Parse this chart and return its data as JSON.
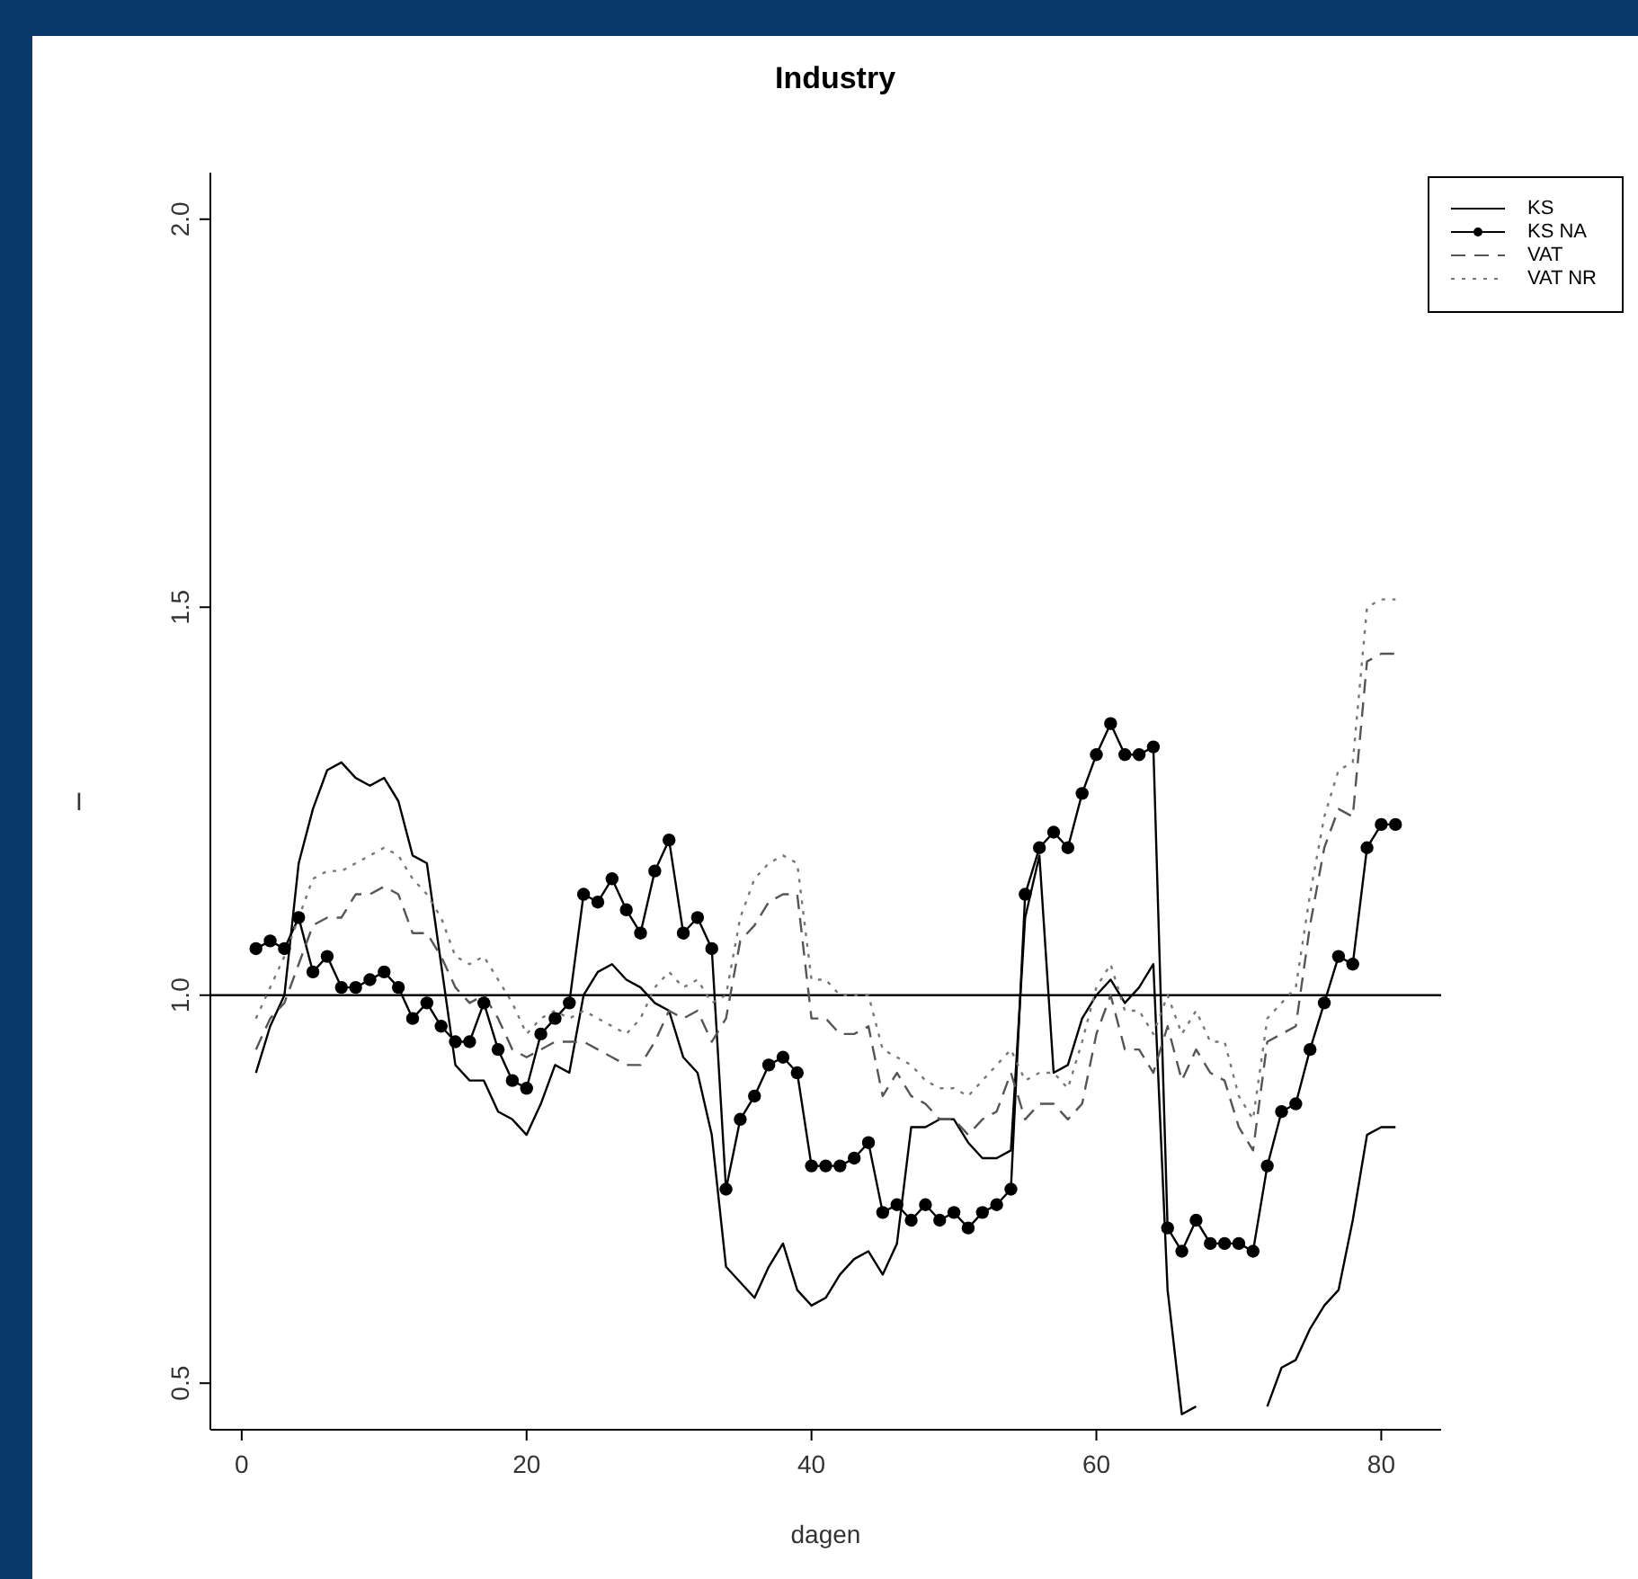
{
  "chart_data": {
    "type": "line",
    "title": "Industry",
    "xlabel": "dagen",
    "ylabel": "I",
    "x": [
      1,
      2,
      3,
      4,
      5,
      6,
      7,
      8,
      9,
      10,
      11,
      12,
      13,
      14,
      15,
      16,
      17,
      18,
      19,
      20,
      21,
      22,
      23,
      24,
      25,
      26,
      27,
      28,
      29,
      30,
      31,
      32,
      33,
      34,
      35,
      36,
      37,
      38,
      39,
      40,
      41,
      42,
      43,
      44,
      45,
      46,
      47,
      48,
      49,
      50,
      51,
      52,
      53,
      54,
      55,
      56,
      57,
      58,
      59,
      60,
      61,
      62,
      63,
      64,
      65,
      66,
      67,
      68,
      69,
      70,
      71,
      72,
      73,
      74,
      75,
      76,
      77,
      78,
      79,
      80,
      81
    ],
    "series": [
      {
        "name": "KS",
        "color": "#000000",
        "line_style": "solid",
        "marker": "none",
        "values": [
          0.9,
          0.96,
          1.0,
          1.17,
          1.24,
          1.29,
          1.3,
          1.28,
          1.27,
          1.28,
          1.25,
          1.18,
          1.17,
          1.04,
          0.91,
          0.89,
          0.89,
          0.85,
          0.84,
          0.82,
          0.86,
          0.91,
          0.9,
          1.0,
          1.03,
          1.04,
          1.02,
          1.01,
          0.99,
          0.98,
          0.92,
          0.9,
          0.82,
          0.65,
          0.63,
          0.61,
          0.65,
          0.68,
          0.62,
          0.6,
          0.61,
          0.64,
          0.66,
          0.67,
          0.64,
          0.68,
          0.83,
          0.83,
          0.84,
          0.84,
          0.81,
          0.79,
          0.79,
          0.8,
          1.1,
          1.18,
          0.9,
          0.91,
          0.97,
          1.0,
          1.02,
          0.99,
          1.01,
          1.04,
          0.62,
          0.46,
          0.47,
          null,
          null,
          null,
          null,
          0.47,
          0.52,
          0.53,
          0.57,
          0.6,
          0.62,
          0.71,
          0.82,
          0.83,
          0.83
        ]
      },
      {
        "name": "KS NA",
        "color": "#000000",
        "line_style": "solid",
        "marker": "circle",
        "values": [
          1.06,
          1.07,
          1.06,
          1.1,
          1.03,
          1.05,
          1.01,
          1.01,
          1.02,
          1.03,
          1.01,
          0.97,
          0.99,
          0.96,
          0.94,
          0.94,
          0.99,
          0.93,
          0.89,
          0.88,
          0.95,
          0.97,
          0.99,
          1.13,
          1.12,
          1.15,
          1.11,
          1.08,
          1.16,
          1.2,
          1.08,
          1.1,
          1.06,
          0.75,
          0.84,
          0.87,
          0.91,
          0.92,
          0.9,
          0.78,
          0.78,
          0.78,
          0.79,
          0.81,
          0.72,
          0.73,
          0.71,
          0.73,
          0.71,
          0.72,
          0.7,
          0.72,
          0.73,
          0.75,
          1.13,
          1.19,
          1.21,
          1.19,
          1.26,
          1.31,
          1.35,
          1.31,
          1.31,
          1.32,
          0.7,
          0.67,
          0.71,
          0.68,
          0.68,
          0.68,
          0.67,
          0.78,
          0.85,
          0.86,
          0.93,
          0.99,
          1.05,
          1.04,
          1.19,
          1.22,
          1.22
        ]
      },
      {
        "name": "VAT",
        "color": "#555555",
        "line_style": "dashed",
        "marker": "none",
        "values": [
          0.93,
          0.97,
          0.99,
          1.04,
          1.09,
          1.1,
          1.1,
          1.13,
          1.13,
          1.14,
          1.13,
          1.08,
          1.08,
          1.05,
          1.01,
          0.99,
          1.0,
          0.97,
          0.93,
          0.92,
          0.93,
          0.94,
          0.94,
          0.94,
          0.93,
          0.92,
          0.91,
          0.91,
          0.94,
          0.98,
          0.97,
          0.98,
          0.94,
          0.97,
          1.07,
          1.09,
          1.12,
          1.13,
          1.13,
          0.97,
          0.97,
          0.95,
          0.95,
          0.96,
          0.87,
          0.9,
          0.87,
          0.86,
          0.84,
          0.84,
          0.82,
          0.84,
          0.85,
          0.9,
          0.84,
          0.86,
          0.86,
          0.84,
          0.86,
          0.95,
          1.0,
          0.93,
          0.93,
          0.9,
          0.96,
          0.89,
          0.93,
          0.9,
          0.89,
          0.83,
          0.8,
          0.94,
          0.95,
          0.96,
          1.09,
          1.19,
          1.24,
          1.23,
          1.43,
          1.44,
          1.44
        ]
      },
      {
        "name": "VAT NR",
        "color": "#777777",
        "line_style": "dotted",
        "marker": "none",
        "values": [
          0.97,
          1.01,
          1.05,
          1.1,
          1.15,
          1.16,
          1.16,
          1.17,
          1.18,
          1.19,
          1.18,
          1.15,
          1.13,
          1.1,
          1.05,
          1.04,
          1.05,
          1.02,
          0.99,
          0.95,
          0.97,
          0.98,
          0.97,
          0.98,
          0.97,
          0.96,
          0.95,
          0.97,
          1.01,
          1.03,
          1.01,
          1.02,
          0.99,
          1.0,
          1.1,
          1.15,
          1.17,
          1.18,
          1.17,
          1.02,
          1.02,
          1.0,
          1.0,
          1.0,
          0.93,
          0.92,
          0.91,
          0.89,
          0.88,
          0.88,
          0.87,
          0.89,
          0.91,
          0.93,
          0.89,
          0.9,
          0.9,
          0.88,
          0.94,
          1.01,
          1.04,
          0.98,
          0.98,
          0.95,
          1.0,
          0.95,
          0.98,
          0.94,
          0.94,
          0.87,
          0.84,
          0.97,
          0.99,
          1.01,
          1.13,
          1.23,
          1.29,
          1.3,
          1.5,
          1.51,
          1.51
        ]
      }
    ],
    "xlim": [
      -2.2,
      84.2
    ],
    "ylim": [
      0.44,
      2.06
    ],
    "xticks": [
      0,
      20,
      40,
      60,
      80
    ],
    "yticks": [
      {
        "value": 0.5,
        "label": "0.5"
      },
      {
        "value": 1,
        "label": "1.0"
      },
      {
        "value": 1.5,
        "label": "1.5"
      },
      {
        "value": 2,
        "label": "2.0"
      }
    ],
    "ref_lines": [
      {
        "axis": "y",
        "value": 1,
        "color": "#000000",
        "line_style": "solid"
      }
    ],
    "legend": "top right"
  }
}
